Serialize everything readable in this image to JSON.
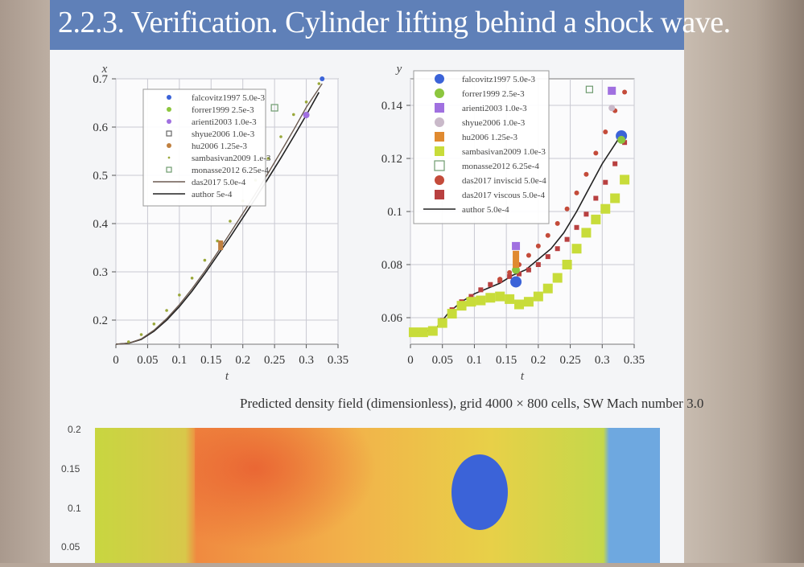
{
  "slide": {
    "title": "2.2.3. Verification. Cylinder lifting behind a shock wave.",
    "caption": "Predicted density field (dimensionless), grid 4000 × 800 cells, SW Mach number 3.0"
  },
  "colors": {
    "title_bar": "#5f80b8",
    "falcovitz": "#3b63d8",
    "forrer": "#8cc63e",
    "arienti": "#a070e0",
    "shyue": "#c9b9c9",
    "hu": "#e08a30",
    "sambasivan": "#c8dc3a",
    "monasse": "#6f9b6f",
    "das_inviscid": "#c44b3a",
    "das_viscous": "#b84040",
    "author": "#222222"
  },
  "chart_data": [
    {
      "type": "scatter",
      "xlabel": "t",
      "ylabel": "x",
      "xlim": [
        0,
        0.35
      ],
      "ylim": [
        0.15,
        0.7
      ],
      "xticks": [
        "0",
        "0.05",
        "0.1",
        "0.15",
        "0.2",
        "0.25",
        "0.3",
        "0.35"
      ],
      "yticks": [
        "0.2",
        "0.3",
        "0.4",
        "0.5",
        "0.6",
        "0.7"
      ],
      "grid": true,
      "legend_position": "top-left",
      "legend": [
        {
          "label": "falcovitz1997 5.0e-3",
          "marker": "dot",
          "color": "#3b63d8"
        },
        {
          "label": "forrer1999 2.5e-3",
          "marker": "dot",
          "color": "#8cc63e"
        },
        {
          "label": "arienti2003 1.0e-3",
          "marker": "dot",
          "color": "#a070e0"
        },
        {
          "label": "shyue2006 1.0e-3",
          "marker": "square-open",
          "color": "#666666"
        },
        {
          "label": "hu2006 1.25e-3",
          "marker": "dot",
          "color": "#c08040"
        },
        {
          "label": "sambasivan2009 1.e-3",
          "marker": "small-dot",
          "color": "#9aa83a"
        },
        {
          "label": "monasse2012 6.25e-4",
          "marker": "square-open",
          "color": "#6f9b6f"
        },
        {
          "label": "das2017 5.0e-4",
          "marker": "line",
          "color": "#6b5a50"
        },
        {
          "label": "author 5e-4",
          "marker": "line",
          "color": "#222222"
        }
      ],
      "series": [
        {
          "name": "author 5e-4",
          "x": [
            0,
            0.02,
            0.04,
            0.06,
            0.08,
            0.1,
            0.12,
            0.14,
            0.16,
            0.18,
            0.2,
            0.22,
            0.24,
            0.26,
            0.28,
            0.3,
            0.32
          ],
          "y": [
            0.15,
            0.152,
            0.16,
            0.177,
            0.2,
            0.228,
            0.26,
            0.296,
            0.334,
            0.372,
            0.412,
            0.452,
            0.494,
            0.536,
            0.58,
            0.625,
            0.672
          ]
        },
        {
          "name": "das2017 5.0e-4",
          "x": [
            0,
            0.02,
            0.04,
            0.06,
            0.08,
            0.1,
            0.12,
            0.14,
            0.16,
            0.18,
            0.2,
            0.22,
            0.24,
            0.26,
            0.28,
            0.3,
            0.325
          ],
          "y": [
            0.15,
            0.152,
            0.161,
            0.179,
            0.203,
            0.232,
            0.265,
            0.301,
            0.34,
            0.38,
            0.421,
            0.462,
            0.505,
            0.549,
            0.594,
            0.641,
            0.69
          ]
        },
        {
          "name": "sambasivan2009 1.e-3",
          "x": [
            0.02,
            0.04,
            0.06,
            0.08,
            0.1,
            0.12,
            0.14,
            0.16,
            0.18,
            0.2,
            0.22,
            0.24,
            0.26,
            0.28,
            0.3,
            0.32
          ],
          "y": [
            0.155,
            0.17,
            0.192,
            0.22,
            0.252,
            0.287,
            0.324,
            0.364,
            0.405,
            0.447,
            0.49,
            0.535,
            0.58,
            0.626,
            0.652,
            0.69
          ]
        },
        {
          "name": "falcovitz1997 5.0e-3",
          "x": [
            0.325
          ],
          "y": [
            0.7
          ]
        },
        {
          "name": "arienti2003 1.0e-3",
          "x": [
            0.3
          ],
          "y": [
            0.625
          ]
        },
        {
          "name": "hu2006 1.25e-3",
          "x": [
            0.165,
            0.165
          ],
          "y": [
            0.36,
            0.35
          ]
        },
        {
          "name": "monasse2012 6.25e-4",
          "x": [
            0.25
          ],
          "y": [
            0.64
          ]
        }
      ]
    },
    {
      "type": "scatter",
      "xlabel": "t",
      "ylabel": "y",
      "xlim": [
        0,
        0.35
      ],
      "ylim": [
        0.05,
        0.15
      ],
      "xticks": [
        "0",
        "0.05",
        "0.1",
        "0.15",
        "0.2",
        "0.25",
        "0.3",
        "0.35"
      ],
      "yticks": [
        "0.06",
        "0.08",
        "0.1",
        "0.12",
        "0.14"
      ],
      "grid": true,
      "legend_position": "top-left",
      "legend": [
        {
          "label": "falcovitz1997 5.0e-3",
          "marker": "dot",
          "color": "#3b63d8"
        },
        {
          "label": "forrer1999 2.5e-3",
          "marker": "dot",
          "color": "#8cc63e"
        },
        {
          "label": "arienti2003 1.0e-3",
          "marker": "square",
          "color": "#a070e0"
        },
        {
          "label": "shyue2006 1.0e-3",
          "marker": "dot",
          "color": "#c9b9c9"
        },
        {
          "label": "hu2006 1.25e-3",
          "marker": "square",
          "color": "#e08a30"
        },
        {
          "label": "sambasivan2009 1.0e-3",
          "marker": "square",
          "color": "#c8dc3a"
        },
        {
          "label": "monasse2012 6.25e-4",
          "marker": "square-open",
          "color": "#6f9b6f"
        },
        {
          "label": "das2017 inviscid 5.0e-4",
          "marker": "dot",
          "color": "#c44b3a"
        },
        {
          "label": "das2017 viscous 5.0e-4",
          "marker": "square",
          "color": "#b84040"
        },
        {
          "label": "author 5.0e-4",
          "marker": "line",
          "color": "#222222"
        }
      ],
      "series": [
        {
          "name": "author 5.0e-4",
          "x": [
            0,
            0.02,
            0.04,
            0.06,
            0.08,
            0.1,
            0.12,
            0.14,
            0.16,
            0.18,
            0.2,
            0.22,
            0.24,
            0.26,
            0.28,
            0.3,
            0.33
          ],
          "y": [
            0.0545,
            0.0545,
            0.056,
            0.062,
            0.066,
            0.069,
            0.071,
            0.073,
            0.076,
            0.078,
            0.082,
            0.086,
            0.092,
            0.1,
            0.109,
            0.118,
            0.129
          ]
        },
        {
          "name": "das2017 viscous 5.0e-4",
          "x": [
            0.005,
            0.02,
            0.035,
            0.05,
            0.065,
            0.08,
            0.095,
            0.11,
            0.125,
            0.14,
            0.155,
            0.17,
            0.185,
            0.2,
            0.215,
            0.23,
            0.245,
            0.26,
            0.275,
            0.29,
            0.305,
            0.32,
            0.335
          ],
          "y": [
            0.0545,
            0.0545,
            0.0555,
            0.059,
            0.063,
            0.066,
            0.068,
            0.0705,
            0.0725,
            0.074,
            0.0755,
            0.0765,
            0.078,
            0.08,
            0.083,
            0.086,
            0.0895,
            0.094,
            0.099,
            0.105,
            0.111,
            0.118,
            0.126
          ]
        },
        {
          "name": "sambasivan2009 1.0e-3",
          "x": [
            0.005,
            0.02,
            0.035,
            0.05,
            0.065,
            0.08,
            0.095,
            0.11,
            0.125,
            0.14,
            0.155,
            0.17,
            0.185,
            0.2,
            0.215,
            0.23,
            0.245,
            0.26,
            0.275,
            0.29,
            0.305,
            0.32,
            0.335
          ],
          "y": [
            0.0545,
            0.0545,
            0.055,
            0.058,
            0.0615,
            0.0645,
            0.066,
            0.0665,
            0.0675,
            0.068,
            0.067,
            0.065,
            0.066,
            0.068,
            0.071,
            0.075,
            0.08,
            0.086,
            0.092,
            0.097,
            0.101,
            0.105,
            0.112
          ]
        },
        {
          "name": "das2017 inviscid 5.0e-4",
          "x": [
            0.14,
            0.155,
            0.17,
            0.185,
            0.2,
            0.215,
            0.23,
            0.245,
            0.26,
            0.275,
            0.29,
            0.305,
            0.32,
            0.335
          ],
          "y": [
            0.0745,
            0.077,
            0.08,
            0.0835,
            0.087,
            0.091,
            0.0955,
            0.101,
            0.107,
            0.114,
            0.122,
            0.13,
            0.138,
            0.145
          ]
        },
        {
          "name": "falcovitz1997 5.0e-3",
          "x": [
            0.165,
            0.33
          ],
          "y": [
            0.0735,
            0.1285
          ]
        },
        {
          "name": "forrer1999 2.5e-3",
          "x": [
            0.165,
            0.33
          ],
          "y": [
            0.078,
            0.127
          ]
        },
        {
          "name": "arienti2003 1.0e-3",
          "x": [
            0.165,
            0.315
          ],
          "y": [
            0.087,
            0.1455
          ]
        },
        {
          "name": "shyue2006 1.0e-3",
          "x": [
            0.315
          ],
          "y": [
            0.139
          ]
        },
        {
          "name": "hu2006 1.25e-3",
          "x": [
            0.165,
            0.165,
            0.165
          ],
          "y": [
            0.08,
            0.082,
            0.084
          ]
        },
        {
          "name": "monasse2012 6.25e-4",
          "x": [
            0.28
          ],
          "y": [
            0.146
          ]
        }
      ]
    }
  ],
  "density_field": {
    "yticks": [
      "0.2",
      "0.15",
      "0.1",
      "0.05"
    ]
  }
}
